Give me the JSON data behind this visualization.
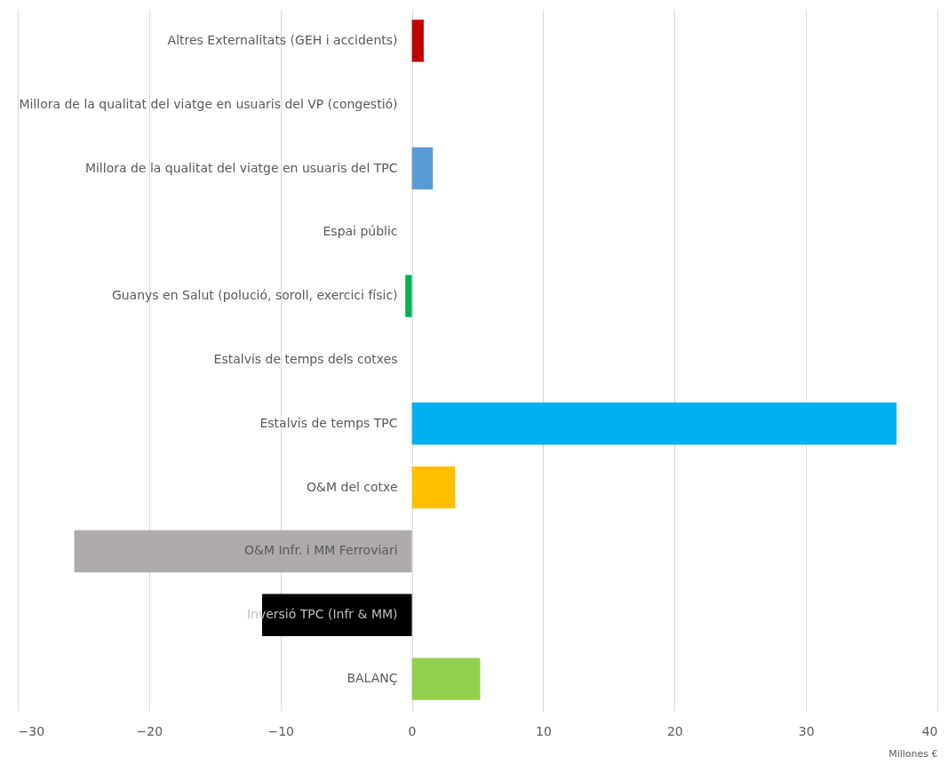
{
  "chart_data": {
    "type": "bar",
    "orientation": "horizontal",
    "xlabel": "Millones €",
    "categories": [
      "Altres Externalitats (GEH i accidents)",
      "Millora de la qualitat del viatge en usuaris del VP (congestió)",
      "Millora de la qualitat del viatge en usuaris del TPC",
      "Espai públic",
      "Guanys en Salut (polució, soroll, exercici físic)",
      "Estalvis de temps dels cotxes",
      "Estalvis de temps TPC",
      "O&M del cotxe",
      "O&M Infr. i MM Ferroviari",
      "Inversió TPC (Infr & MM)",
      "BALANÇ"
    ],
    "values": [
      0.9,
      0,
      1.6,
      0,
      -0.5,
      0,
      36.9,
      3.3,
      -25.7,
      -11.4,
      5.2
    ],
    "colors": [
      "#c00000",
      "#a5a5a5",
      "#5b9bd5",
      "#a5a5a5",
      "#00b050",
      "#a5a5a5",
      "#00b0f0",
      "#ffc000",
      "#aeaaaa",
      "#000000",
      "#92d050"
    ],
    "xlim": [
      -30,
      40
    ],
    "xticks": [
      -30,
      -20,
      -10,
      0,
      10,
      20,
      30,
      40
    ],
    "grid": "x"
  }
}
